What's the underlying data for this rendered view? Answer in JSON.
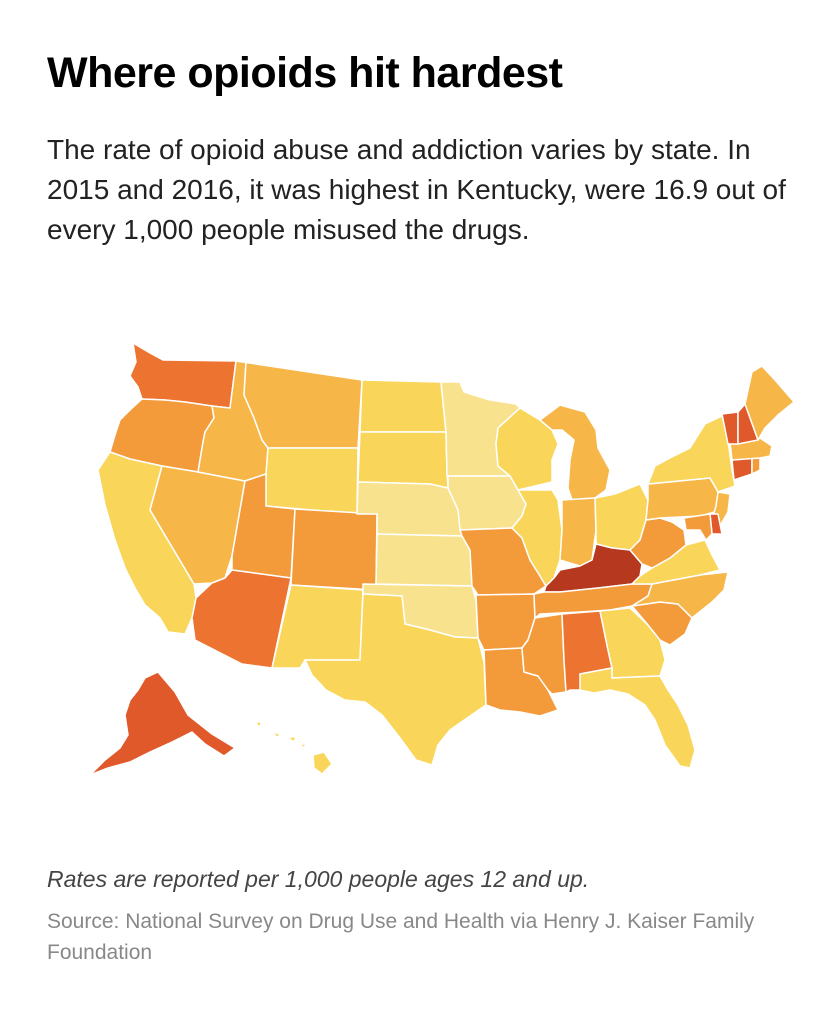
{
  "header": {
    "title": "Where opioids hit hardest",
    "subtitle": "The rate of opioid abuse and addiction varies by state. In 2015 and 2016, it was highest in Kentucky, were 16.9 out of every 1,000 people misused the drugs."
  },
  "map": {
    "subject": "United States choropleth of opioid abuse and addiction rates by state",
    "highlight_state": "Kentucky",
    "highlight_value": 16.9,
    "colors": {
      "lightest": "#f8e28d",
      "light": "#f9d55a",
      "medium": "#f6b648",
      "orange": "#f39a3a",
      "dark_orange": "#ec7330",
      "red_orange": "#e0592a",
      "darkest": "#b5381f"
    },
    "states": [
      {
        "name": "Washington",
        "tier": "dark_orange"
      },
      {
        "name": "Oregon",
        "tier": "orange"
      },
      {
        "name": "California",
        "tier": "light"
      },
      {
        "name": "Nevada",
        "tier": "medium"
      },
      {
        "name": "Idaho",
        "tier": "medium"
      },
      {
        "name": "Montana",
        "tier": "medium"
      },
      {
        "name": "Wyoming",
        "tier": "light"
      },
      {
        "name": "Utah",
        "tier": "orange"
      },
      {
        "name": "Arizona",
        "tier": "dark_orange"
      },
      {
        "name": "Colorado",
        "tier": "orange"
      },
      {
        "name": "New Mexico",
        "tier": "light"
      },
      {
        "name": "North Dakota",
        "tier": "light"
      },
      {
        "name": "South Dakota",
        "tier": "light"
      },
      {
        "name": "Nebraska",
        "tier": "lightest"
      },
      {
        "name": "Kansas",
        "tier": "lightest"
      },
      {
        "name": "Oklahoma",
        "tier": "lightest"
      },
      {
        "name": "Texas",
        "tier": "light"
      },
      {
        "name": "Minnesota",
        "tier": "lightest"
      },
      {
        "name": "Iowa",
        "tier": "lightest"
      },
      {
        "name": "Missouri",
        "tier": "orange"
      },
      {
        "name": "Arkansas",
        "tier": "orange"
      },
      {
        "name": "Louisiana",
        "tier": "orange"
      },
      {
        "name": "Wisconsin",
        "tier": "light"
      },
      {
        "name": "Illinois",
        "tier": "light"
      },
      {
        "name": "Michigan",
        "tier": "medium"
      },
      {
        "name": "Indiana",
        "tier": "medium"
      },
      {
        "name": "Ohio",
        "tier": "light"
      },
      {
        "name": "Kentucky",
        "tier": "darkest"
      },
      {
        "name": "Tennessee",
        "tier": "orange"
      },
      {
        "name": "Mississippi",
        "tier": "orange"
      },
      {
        "name": "Alabama",
        "tier": "dark_orange"
      },
      {
        "name": "Georgia",
        "tier": "light"
      },
      {
        "name": "Florida",
        "tier": "light"
      },
      {
        "name": "South Carolina",
        "tier": "orange"
      },
      {
        "name": "North Carolina",
        "tier": "medium"
      },
      {
        "name": "Virginia",
        "tier": "light"
      },
      {
        "name": "West Virginia",
        "tier": "orange"
      },
      {
        "name": "Pennsylvania",
        "tier": "medium"
      },
      {
        "name": "New York",
        "tier": "light"
      },
      {
        "name": "New Jersey",
        "tier": "medium"
      },
      {
        "name": "Delaware",
        "tier": "red_orange"
      },
      {
        "name": "Maryland",
        "tier": "orange"
      },
      {
        "name": "Connecticut",
        "tier": "red_orange"
      },
      {
        "name": "Rhode Island",
        "tier": "orange"
      },
      {
        "name": "Massachusetts",
        "tier": "medium"
      },
      {
        "name": "Vermont",
        "tier": "red_orange"
      },
      {
        "name": "New Hampshire",
        "tier": "red_orange"
      },
      {
        "name": "Maine",
        "tier": "medium"
      },
      {
        "name": "Alaska",
        "tier": "red_orange"
      },
      {
        "name": "Hawaii",
        "tier": "light"
      }
    ]
  },
  "footer": {
    "note": "Rates are reported per 1,000 people ages 12 and up.",
    "source": "Source: National Survey on Drug Use and Health via Henry J. Kaiser Family Foundation"
  }
}
